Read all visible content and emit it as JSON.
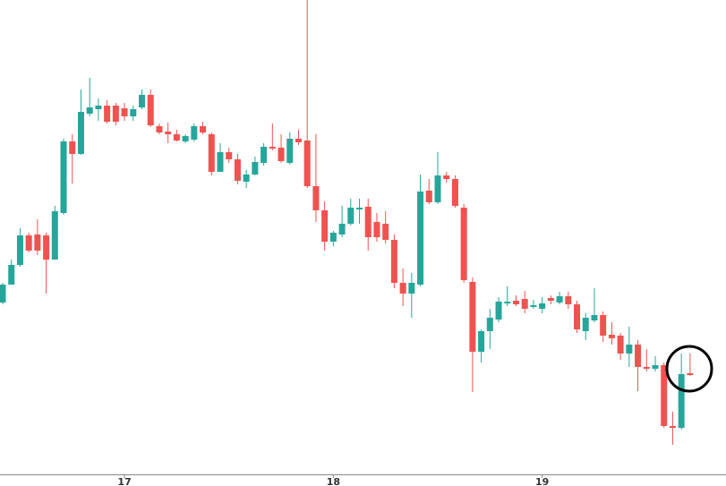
{
  "chart_data": {
    "type": "candlestick",
    "categories": [
      null,
      null,
      null,
      null,
      null,
      null,
      null,
      null,
      null,
      null,
      null,
      null,
      null,
      null,
      "17",
      null,
      null,
      null,
      null,
      null,
      null,
      null,
      null,
      null,
      null,
      null,
      null,
      null,
      null,
      null,
      null,
      null,
      null,
      null,
      null,
      null,
      null,
      null,
      "18",
      null,
      null,
      null,
      null,
      null,
      null,
      null,
      null,
      null,
      null,
      null,
      null,
      null,
      null,
      null,
      null,
      null,
      null,
      null,
      null,
      null,
      null,
      null,
      "19",
      null,
      null,
      null,
      null,
      null,
      null,
      null,
      null,
      null,
      null,
      null,
      null,
      null,
      null,
      null,
      null,
      null
    ],
    "open": [
      202,
      222,
      244,
      277,
      278,
      277,
      250,
      302,
      382,
      368,
      413,
      418,
      422,
      422,
      419,
      410,
      420,
      434,
      399,
      393,
      390,
      382,
      384,
      399,
      390,
      348,
      370,
      362,
      337,
      345,
      358,
      376,
      375,
      358,
      385,
      383,
      332,
      305,
      270,
      278,
      290,
      306,
      309,
      292,
      290,
      272,
      224,
      212,
      222,
      327,
      314,
      344,
      340,
      308,
      225,
      147,
      170,
      183,
      201,
      204,
      206,
      197,
      195,
      207,
      202,
      209,
      200,
      170,
      182,
      188,
      166,
      165,
      145,
      155,
      130,
      128,
      132,
      64,
      62,
      123
    ],
    "high": [
      224,
      250,
      285,
      280,
      295,
      280,
      310,
      385,
      390,
      440,
      453,
      430,
      428,
      425,
      425,
      422,
      440,
      440,
      402,
      403,
      395,
      390,
      402,
      404,
      392,
      380,
      375,
      368,
      350,
      365,
      380,
      402,
      390,
      392,
      395,
      540,
      390,
      315,
      282,
      310,
      318,
      318,
      318,
      302,
      304,
      278,
      240,
      235,
      345,
      340,
      370,
      348,
      344,
      312,
      230,
      172,
      195,
      208,
      220,
      210,
      215,
      205,
      208,
      210,
      214,
      214,
      204,
      190,
      218,
      192,
      180,
      168,
      175,
      160,
      150,
      142,
      135,
      80,
      145,
      145
    ],
    "low": [
      200,
      222,
      242,
      258,
      255,
      212,
      250,
      300,
      335,
      367,
      410,
      405,
      402,
      400,
      405,
      405,
      418,
      398,
      390,
      380,
      382,
      380,
      382,
      390,
      344,
      348,
      358,
      334,
      330,
      344,
      355,
      372,
      358,
      356,
      378,
      330,
      292,
      260,
      265,
      275,
      288,
      290,
      260,
      270,
      268,
      218,
      198,
      185,
      220,
      312,
      312,
      336,
      308,
      224,
      102,
      135,
      150,
      180,
      198,
      198,
      190,
      195,
      190,
      200,
      200,
      195,
      168,
      160,
      180,
      158,
      155,
      138,
      130,
      103,
      125,
      125,
      62,
      43,
      60,
      120
    ],
    "close": [
      222,
      244,
      277,
      260,
      260,
      250,
      304,
      382,
      368,
      415,
      420,
      422,
      404,
      404,
      410,
      418,
      434,
      400,
      392,
      390,
      383,
      388,
      399,
      392,
      348,
      370,
      362,
      338,
      345,
      359,
      376,
      374,
      360,
      385,
      381,
      332,
      305,
      270,
      280,
      290,
      308,
      308,
      275,
      275,
      272,
      224,
      212,
      224,
      326,
      314,
      344,
      340,
      310,
      227,
      147,
      170,
      185,
      203,
      203,
      200,
      195,
      199,
      201,
      204,
      209,
      200,
      172,
      185,
      188,
      165,
      162,
      145,
      155,
      130,
      128,
      132,
      64,
      62,
      122,
      121
    ],
    "up_color": "#26a69a",
    "down_color": "#ef5350",
    "ylim": [
      10,
      540
    ]
  }
}
